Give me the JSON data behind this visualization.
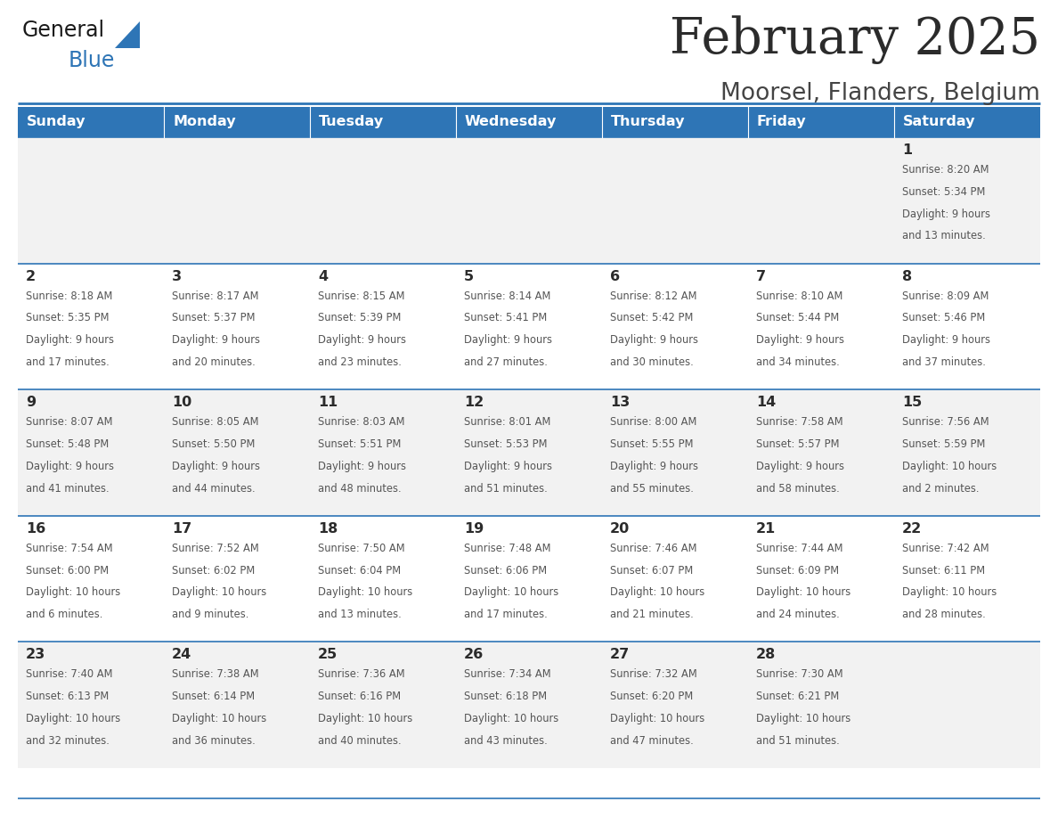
{
  "title": "February 2025",
  "subtitle": "Moorsel, Flanders, Belgium",
  "header_bg": "#2e75b6",
  "header_text": "#ffffff",
  "row_bg_odd": "#f2f2f2",
  "row_bg_even": "#ffffff",
  "border_color": "#2e75b6",
  "title_color": "#2b2b2b",
  "subtitle_color": "#444444",
  "day_number_color": "#2b2b2b",
  "cell_text_color": "#555555",
  "days_of_week": [
    "Sunday",
    "Monday",
    "Tuesday",
    "Wednesday",
    "Thursday",
    "Friday",
    "Saturday"
  ],
  "weeks": [
    [
      {
        "day": "",
        "info": ""
      },
      {
        "day": "",
        "info": ""
      },
      {
        "day": "",
        "info": ""
      },
      {
        "day": "",
        "info": ""
      },
      {
        "day": "",
        "info": ""
      },
      {
        "day": "",
        "info": ""
      },
      {
        "day": "1",
        "info": "Sunrise: 8:20 AM\nSunset: 5:34 PM\nDaylight: 9 hours\nand 13 minutes."
      }
    ],
    [
      {
        "day": "2",
        "info": "Sunrise: 8:18 AM\nSunset: 5:35 PM\nDaylight: 9 hours\nand 17 minutes."
      },
      {
        "day": "3",
        "info": "Sunrise: 8:17 AM\nSunset: 5:37 PM\nDaylight: 9 hours\nand 20 minutes."
      },
      {
        "day": "4",
        "info": "Sunrise: 8:15 AM\nSunset: 5:39 PM\nDaylight: 9 hours\nand 23 minutes."
      },
      {
        "day": "5",
        "info": "Sunrise: 8:14 AM\nSunset: 5:41 PM\nDaylight: 9 hours\nand 27 minutes."
      },
      {
        "day": "6",
        "info": "Sunrise: 8:12 AM\nSunset: 5:42 PM\nDaylight: 9 hours\nand 30 minutes."
      },
      {
        "day": "7",
        "info": "Sunrise: 8:10 AM\nSunset: 5:44 PM\nDaylight: 9 hours\nand 34 minutes."
      },
      {
        "day": "8",
        "info": "Sunrise: 8:09 AM\nSunset: 5:46 PM\nDaylight: 9 hours\nand 37 minutes."
      }
    ],
    [
      {
        "day": "9",
        "info": "Sunrise: 8:07 AM\nSunset: 5:48 PM\nDaylight: 9 hours\nand 41 minutes."
      },
      {
        "day": "10",
        "info": "Sunrise: 8:05 AM\nSunset: 5:50 PM\nDaylight: 9 hours\nand 44 minutes."
      },
      {
        "day": "11",
        "info": "Sunrise: 8:03 AM\nSunset: 5:51 PM\nDaylight: 9 hours\nand 48 minutes."
      },
      {
        "day": "12",
        "info": "Sunrise: 8:01 AM\nSunset: 5:53 PM\nDaylight: 9 hours\nand 51 minutes."
      },
      {
        "day": "13",
        "info": "Sunrise: 8:00 AM\nSunset: 5:55 PM\nDaylight: 9 hours\nand 55 minutes."
      },
      {
        "day": "14",
        "info": "Sunrise: 7:58 AM\nSunset: 5:57 PM\nDaylight: 9 hours\nand 58 minutes."
      },
      {
        "day": "15",
        "info": "Sunrise: 7:56 AM\nSunset: 5:59 PM\nDaylight: 10 hours\nand 2 minutes."
      }
    ],
    [
      {
        "day": "16",
        "info": "Sunrise: 7:54 AM\nSunset: 6:00 PM\nDaylight: 10 hours\nand 6 minutes."
      },
      {
        "day": "17",
        "info": "Sunrise: 7:52 AM\nSunset: 6:02 PM\nDaylight: 10 hours\nand 9 minutes."
      },
      {
        "day": "18",
        "info": "Sunrise: 7:50 AM\nSunset: 6:04 PM\nDaylight: 10 hours\nand 13 minutes."
      },
      {
        "day": "19",
        "info": "Sunrise: 7:48 AM\nSunset: 6:06 PM\nDaylight: 10 hours\nand 17 minutes."
      },
      {
        "day": "20",
        "info": "Sunrise: 7:46 AM\nSunset: 6:07 PM\nDaylight: 10 hours\nand 21 minutes."
      },
      {
        "day": "21",
        "info": "Sunrise: 7:44 AM\nSunset: 6:09 PM\nDaylight: 10 hours\nand 24 minutes."
      },
      {
        "day": "22",
        "info": "Sunrise: 7:42 AM\nSunset: 6:11 PM\nDaylight: 10 hours\nand 28 minutes."
      }
    ],
    [
      {
        "day": "23",
        "info": "Sunrise: 7:40 AM\nSunset: 6:13 PM\nDaylight: 10 hours\nand 32 minutes."
      },
      {
        "day": "24",
        "info": "Sunrise: 7:38 AM\nSunset: 6:14 PM\nDaylight: 10 hours\nand 36 minutes."
      },
      {
        "day": "25",
        "info": "Sunrise: 7:36 AM\nSunset: 6:16 PM\nDaylight: 10 hours\nand 40 minutes."
      },
      {
        "day": "26",
        "info": "Sunrise: 7:34 AM\nSunset: 6:18 PM\nDaylight: 10 hours\nand 43 minutes."
      },
      {
        "day": "27",
        "info": "Sunrise: 7:32 AM\nSunset: 6:20 PM\nDaylight: 10 hours\nand 47 minutes."
      },
      {
        "day": "28",
        "info": "Sunrise: 7:30 AM\nSunset: 6:21 PM\nDaylight: 10 hours\nand 51 minutes."
      },
      {
        "day": "",
        "info": ""
      }
    ]
  ],
  "logo_text_general": "General",
  "logo_text_blue": "Blue",
  "logo_general_color": "#1a1a1a",
  "logo_triangle_color": "#2e75b6",
  "logo_blue_color": "#2e75b6"
}
